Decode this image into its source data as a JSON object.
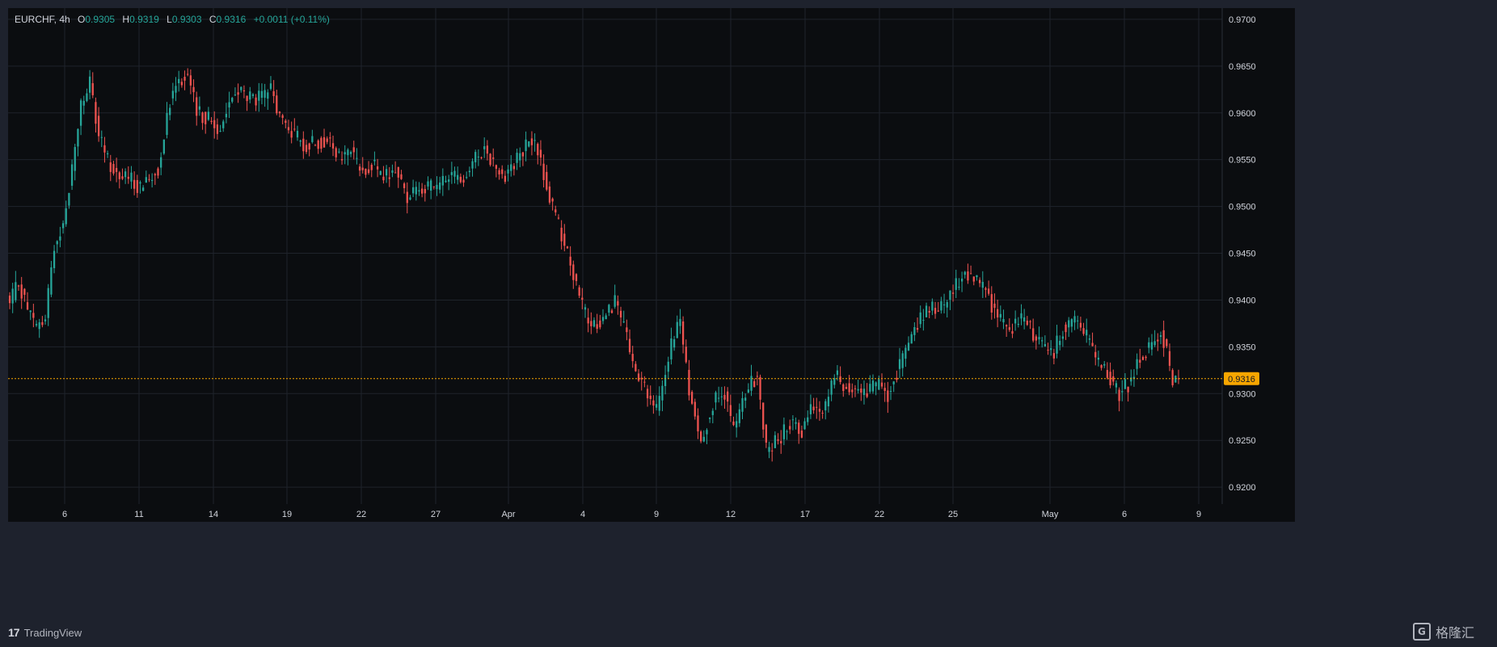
{
  "legend": {
    "symbol": "EURCHF, 4h",
    "o_label": "O",
    "o": "0.9305",
    "h_label": "H",
    "h": "0.9319",
    "l_label": "L",
    "l": "0.9303",
    "c_label": "C",
    "c": "0.9316",
    "change": "+0.0011 (+0.11%)"
  },
  "branding": {
    "logo_text": "TradingView",
    "watermark": "格隆汇"
  },
  "colors": {
    "up": "#26a69a",
    "down": "#ef5350",
    "background": "#0b0d10",
    "grid": "#1f232b",
    "axis_text": "#d1d4dc",
    "price_line": "#f7a600"
  },
  "chart_data": {
    "type": "candlestick",
    "symbol": "EURCHF",
    "interval": "4h",
    "ylim": [
      0.9182,
      0.9712
    ],
    "y_ticks": [
      "0.9700",
      "0.9650",
      "0.9600",
      "0.9550",
      "0.9500",
      "0.9450",
      "0.9400",
      "0.9350",
      "0.9300",
      "0.9250",
      "0.9200"
    ],
    "x_ticks": [
      "6",
      "11",
      "14",
      "19",
      "22",
      "27",
      "Apr",
      "4",
      "9",
      "12",
      "17",
      "22",
      "25",
      "May",
      "6",
      "9"
    ],
    "last_price": 0.9316,
    "last_price_label": "0.9316",
    "grid": true,
    "anchors": [
      [
        0,
        0.9395
      ],
      [
        3,
        0.942
      ],
      [
        6,
        0.939
      ],
      [
        9,
        0.937
      ],
      [
        12,
        0.938
      ],
      [
        15,
        0.946
      ],
      [
        18,
        0.948
      ],
      [
        21,
        0.954
      ],
      [
        24,
        0.961
      ],
      [
        27,
        0.963
      ],
      [
        30,
        0.9575
      ],
      [
        33,
        0.955
      ],
      [
        36,
        0.9535
      ],
      [
        40,
        0.953
      ],
      [
        44,
        0.952
      ],
      [
        47,
        0.953
      ],
      [
        50,
        0.954
      ],
      [
        53,
        0.96
      ],
      [
        56,
        0.9635
      ],
      [
        60,
        0.964
      ],
      [
        63,
        0.96
      ],
      [
        67,
        0.9595
      ],
      [
        70,
        0.958
      ],
      [
        74,
        0.961
      ],
      [
        77,
        0.9625
      ],
      [
        81,
        0.9615
      ],
      [
        85,
        0.9615
      ],
      [
        88,
        0.9625
      ],
      [
        91,
        0.9595
      ],
      [
        95,
        0.958
      ],
      [
        99,
        0.9565
      ],
      [
        103,
        0.957
      ],
      [
        107,
        0.957
      ],
      [
        111,
        0.955
      ],
      [
        115,
        0.956
      ],
      [
        118,
        0.954
      ],
      [
        122,
        0.9545
      ],
      [
        126,
        0.953
      ],
      [
        130,
        0.954
      ],
      [
        134,
        0.951
      ],
      [
        137,
        0.952
      ],
      [
        141,
        0.952
      ],
      [
        145,
        0.952
      ],
      [
        148,
        0.9535
      ],
      [
        152,
        0.953
      ],
      [
        156,
        0.9545
      ],
      [
        160,
        0.9565
      ],
      [
        164,
        0.954
      ],
      [
        167,
        0.9535
      ],
      [
        171,
        0.955
      ],
      [
        175,
        0.957
      ],
      [
        178,
        0.956
      ],
      [
        181,
        0.952
      ],
      [
        185,
        0.948
      ],
      [
        189,
        0.944
      ],
      [
        192,
        0.94
      ],
      [
        196,
        0.937
      ],
      [
        200,
        0.938
      ],
      [
        204,
        0.94
      ],
      [
        207,
        0.937
      ],
      [
        211,
        0.932
      ],
      [
        215,
        0.93
      ],
      [
        218,
        0.928
      ],
      [
        222,
        0.934
      ],
      [
        226,
        0.938
      ],
      [
        229,
        0.93
      ],
      [
        233,
        0.925
      ],
      [
        237,
        0.929
      ],
      [
        241,
        0.93
      ],
      [
        244,
        0.926
      ],
      [
        248,
        0.93
      ],
      [
        252,
        0.932
      ],
      [
        255,
        0.924
      ],
      [
        259,
        0.925
      ],
      [
        263,
        0.927
      ],
      [
        267,
        0.926
      ],
      [
        270,
        0.929
      ],
      [
        274,
        0.928
      ],
      [
        278,
        0.932
      ],
      [
        281,
        0.931
      ],
      [
        285,
        0.9305
      ],
      [
        289,
        0.93
      ],
      [
        293,
        0.931
      ],
      [
        296,
        0.93
      ],
      [
        300,
        0.933
      ],
      [
        304,
        0.936
      ],
      [
        307,
        0.938
      ],
      [
        311,
        0.939
      ],
      [
        315,
        0.9395
      ],
      [
        318,
        0.941
      ],
      [
        322,
        0.943
      ],
      [
        326,
        0.942
      ],
      [
        329,
        0.941
      ],
      [
        333,
        0.938
      ],
      [
        337,
        0.937
      ],
      [
        341,
        0.938
      ],
      [
        344,
        0.937
      ],
      [
        348,
        0.935
      ],
      [
        352,
        0.9345
      ],
      [
        355,
        0.937
      ],
      [
        359,
        0.938
      ],
      [
        363,
        0.936
      ],
      [
        366,
        0.9335
      ],
      [
        370,
        0.932
      ],
      [
        374,
        0.93
      ],
      [
        377,
        0.931
      ],
      [
        381,
        0.934
      ],
      [
        385,
        0.935
      ],
      [
        388,
        0.9365
      ],
      [
        390,
        0.9345
      ],
      [
        392,
        0.931
      ],
      [
        394,
        0.9316
      ]
    ]
  }
}
